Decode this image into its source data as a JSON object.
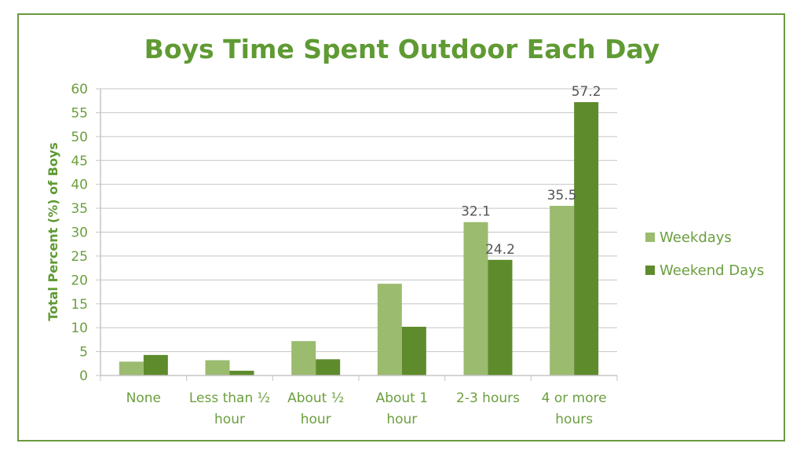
{
  "chart_data": {
    "type": "bar",
    "title": "Boys Time Spent Outdoor Each Day",
    "xlabel": "",
    "ylabel": "Total Percent (%) of Boys",
    "ylim": [
      0,
      60
    ],
    "yticks": [
      0,
      5,
      10,
      15,
      20,
      25,
      30,
      35,
      40,
      45,
      50,
      55,
      60
    ],
    "grid": true,
    "legend_position": "right",
    "categories": [
      [
        "None"
      ],
      [
        "Less than ½",
        "hour"
      ],
      [
        "About ½",
        "hour"
      ],
      [
        "About 1",
        "hour"
      ],
      [
        "2-3 hours"
      ],
      [
        "4 or more",
        "hours"
      ]
    ],
    "series": [
      {
        "name": "Weekdays",
        "color": "#9bbb6f",
        "values": [
          2.9,
          3.2,
          7.2,
          19.2,
          32.1,
          35.5
        ],
        "labels": [
          "",
          "",
          "",
          "",
          "32.1",
          "35.5"
        ]
      },
      {
        "name": "Weekend Days",
        "color": "#5e8b2c",
        "values": [
          4.3,
          1.0,
          3.4,
          10.2,
          24.2,
          57.2
        ],
        "labels": [
          "",
          "",
          "",
          "",
          "24.2",
          "57.2"
        ]
      }
    ]
  },
  "colors": {
    "frame": "#6a9a3e",
    "title": "#5f9a33",
    "text": "#6b9f3e",
    "grid": "#c5c5c5"
  }
}
